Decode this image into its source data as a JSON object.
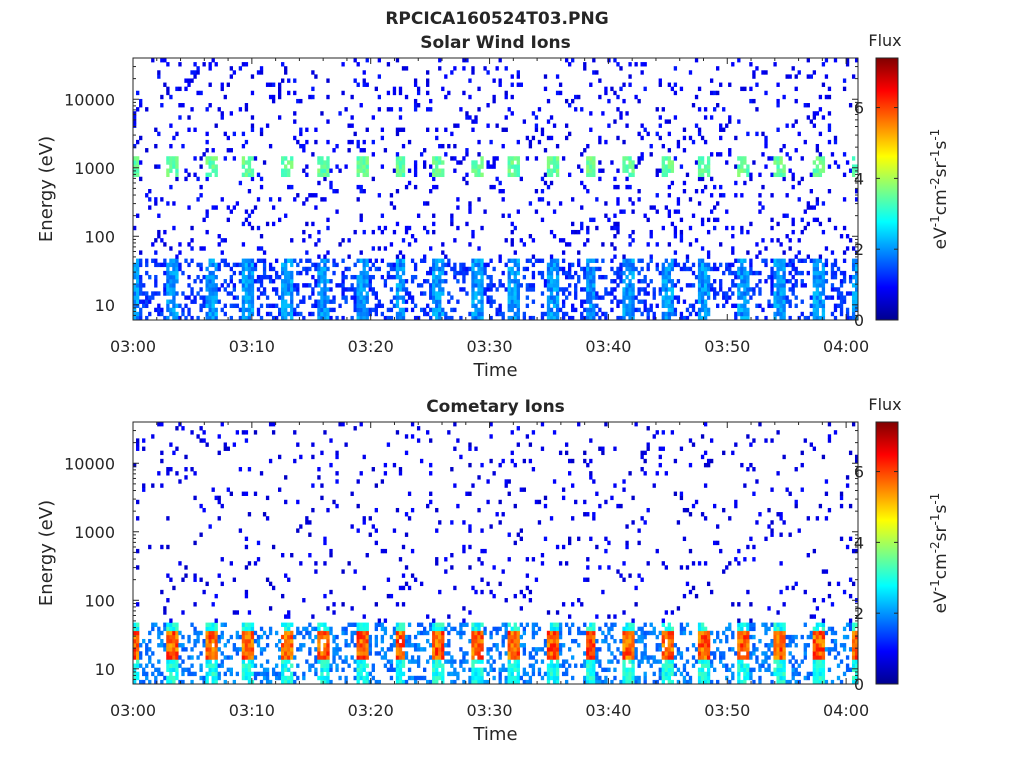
{
  "figure": {
    "title": "RPCICA160524T03.PNG"
  },
  "colors": {
    "colormap": "jet",
    "axis": "#262626",
    "background": "#ffffff"
  },
  "chart_data": [
    {
      "type": "heatmap",
      "title": "Solar Wind Ions",
      "xlabel": "Time",
      "ylabel": "Energy (eV)",
      "x_ticks": [
        "03:00",
        "03:10",
        "03:20",
        "03:30",
        "03:40",
        "03:50",
        "04:00"
      ],
      "x_range": [
        "03:00",
        "04:01"
      ],
      "y_scale": "log",
      "y_ticks": [
        10,
        100,
        1000,
        10000
      ],
      "y_range": [
        6,
        40000
      ],
      "colorbar": {
        "label_top": "Flux",
        "unit": "eV-1cm-2sr-1s-1",
        "range": [
          0,
          7.4
        ],
        "ticks": [
          0,
          2,
          4,
          6
        ]
      },
      "features": {
        "repeat_period_min": 3.2,
        "burst_energy_eV": 1000,
        "burst_flux": 3.2,
        "low_band_energy_eV": [
          10,
          40
        ],
        "low_band_flux": 1.6,
        "background_flux": 0.6
      }
    },
    {
      "type": "heatmap",
      "title": "Cometary Ions",
      "xlabel": "Time",
      "ylabel": "Energy (eV)",
      "x_ticks": [
        "03:00",
        "03:10",
        "03:20",
        "03:30",
        "03:40",
        "03:50",
        "04:00"
      ],
      "x_range": [
        "03:00",
        "04:01"
      ],
      "y_scale": "log",
      "y_ticks": [
        10,
        100,
        1000,
        10000
      ],
      "y_range": [
        6,
        40000
      ],
      "colorbar": {
        "label_top": "Flux",
        "unit": "eV-1cm-2sr-1s-1",
        "range": [
          0,
          7.4
        ],
        "ticks": [
          0,
          2,
          4,
          6
        ]
      },
      "features": {
        "repeat_period_min": 3.2,
        "burst_energy_eV": 22,
        "burst_flux": 5.2,
        "low_band_energy_eV": [
          10,
          40
        ],
        "low_band_flux": 2.5,
        "background_flux": 0.5
      }
    }
  ]
}
